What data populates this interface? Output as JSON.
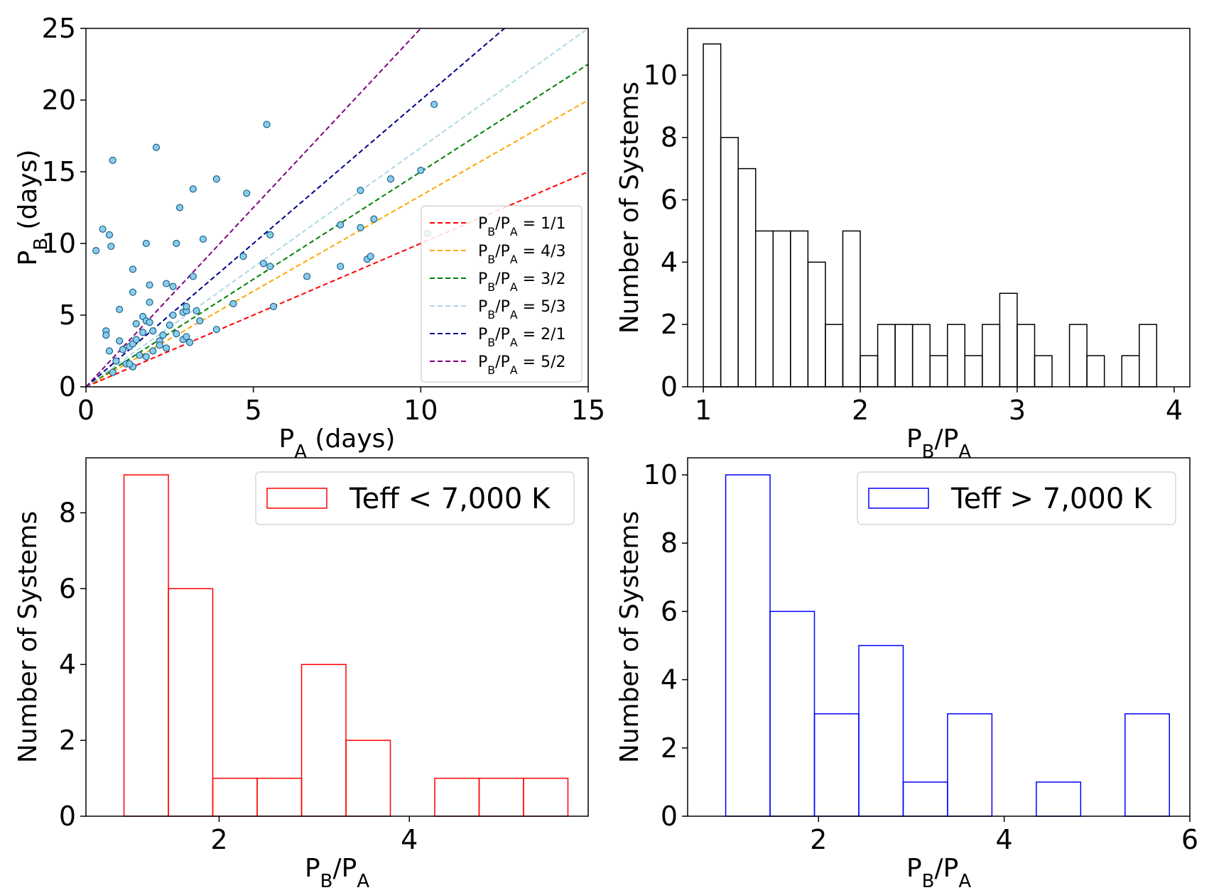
{
  "chart_data": [
    {
      "type": "scatter",
      "xlabel": "P_A (days)",
      "ylabel": "P_B (days)",
      "xlim": [
        0,
        15
      ],
      "ylim": [
        0,
        25
      ],
      "xticks": [
        0,
        5,
        10,
        15
      ],
      "yticks": [
        0,
        5,
        10,
        15,
        20,
        25
      ],
      "legend_position": "lower-right",
      "point_color": "#87ceeb",
      "point_edge_color": "#1f5f8b",
      "reference_lines": [
        {
          "label": "P_B/P_A = 1/1",
          "slope": 1.0,
          "color": "#ff0000"
        },
        {
          "label": "P_B/P_A = 4/3",
          "slope": 1.3333,
          "color": "#ffa500"
        },
        {
          "label": "P_B/P_A = 3/2",
          "slope": 1.5,
          "color": "#008000"
        },
        {
          "label": "P_B/P_A = 5/3",
          "slope": 1.6667,
          "color": "#add8e6"
        },
        {
          "label": "P_B/P_A = 2/1",
          "slope": 2.0,
          "color": "#00008b"
        },
        {
          "label": "P_B/P_A = 5/2",
          "slope": 2.5,
          "color": "#800080"
        }
      ],
      "points": [
        [
          0.3,
          9.5
        ],
        [
          0.5,
          11.0
        ],
        [
          0.6,
          3.9
        ],
        [
          0.6,
          3.6
        ],
        [
          0.7,
          10.6
        ],
        [
          0.75,
          9.8
        ],
        [
          0.8,
          15.8
        ],
        [
          0.7,
          2.5
        ],
        [
          0.8,
          1.0
        ],
        [
          1.0,
          5.4
        ],
        [
          1.0,
          3.2
        ],
        [
          0.9,
          1.8
        ],
        [
          1.1,
          2.6
        ],
        [
          1.2,
          1.6
        ],
        [
          1.3,
          2.8
        ],
        [
          1.4,
          8.2
        ],
        [
          1.4,
          6.6
        ],
        [
          1.4,
          3.0
        ],
        [
          1.5,
          4.4
        ],
        [
          1.5,
          3.3
        ],
        [
          1.4,
          1.4
        ],
        [
          1.6,
          2.2
        ],
        [
          1.7,
          4.9
        ],
        [
          1.7,
          3.8
        ],
        [
          1.8,
          10.0
        ],
        [
          1.8,
          4.6
        ],
        [
          1.9,
          7.1
        ],
        [
          1.9,
          5.9
        ],
        [
          1.9,
          4.5
        ],
        [
          1.8,
          2.1
        ],
        [
          2.0,
          2.5
        ],
        [
          2.1,
          16.7
        ],
        [
          2.0,
          3.9
        ],
        [
          2.2,
          3.2
        ],
        [
          2.3,
          3.6
        ],
        [
          2.4,
          7.2
        ],
        [
          2.5,
          4.3
        ],
        [
          2.4,
          2.7
        ],
        [
          2.6,
          5.0
        ],
        [
          2.6,
          7.0
        ],
        [
          2.7,
          10.0
        ],
        [
          2.7,
          3.7
        ],
        [
          2.8,
          12.5
        ],
        [
          2.9,
          5.2
        ],
        [
          2.9,
          3.3
        ],
        [
          3.0,
          5.3
        ],
        [
          3.0,
          3.5
        ],
        [
          3.1,
          3.1
        ],
        [
          3.0,
          5.6
        ],
        [
          3.2,
          13.8
        ],
        [
          3.2,
          7.7
        ],
        [
          3.3,
          5.3
        ],
        [
          3.4,
          4.6
        ],
        [
          3.5,
          10.3
        ],
        [
          3.9,
          14.5
        ],
        [
          3.9,
          4.0
        ],
        [
          4.4,
          5.8
        ],
        [
          4.7,
          9.1
        ],
        [
          4.8,
          13.5
        ],
        [
          5.3,
          8.6
        ],
        [
          5.4,
          18.3
        ],
        [
          5.5,
          10.6
        ],
        [
          5.5,
          8.4
        ],
        [
          5.6,
          5.6
        ],
        [
          6.6,
          7.7
        ],
        [
          7.6,
          11.3
        ],
        [
          7.6,
          8.4
        ],
        [
          8.2,
          13.7
        ],
        [
          8.2,
          11.1
        ],
        [
          8.4,
          8.9
        ],
        [
          8.5,
          9.1
        ],
        [
          8.6,
          11.7
        ],
        [
          9.1,
          14.5
        ],
        [
          10.0,
          15.1
        ],
        [
          10.4,
          19.7
        ],
        [
          10.2,
          10.7
        ],
        [
          1.3,
          1.6
        ],
        [
          2.2,
          2.9
        ]
      ]
    },
    {
      "type": "histogram",
      "xlabel": "P_B/P_A",
      "ylabel": "Number of Systems",
      "xlim": [
        0.9,
        4.1
      ],
      "ylim": [
        0,
        11.5
      ],
      "xticks": [
        1,
        2,
        3,
        4
      ],
      "yticks": [
        0,
        2,
        4,
        6,
        8,
        10
      ],
      "bar_color": "#000000",
      "bin_start": 1.0,
      "bin_width": 0.1111,
      "values": [
        11,
        8,
        7,
        5,
        5,
        5,
        4,
        2,
        5,
        1,
        2,
        2,
        2,
        1,
        2,
        1,
        2,
        3,
        2,
        1,
        0,
        2,
        1,
        0,
        1,
        2
      ]
    },
    {
      "type": "histogram",
      "xlabel": "P_B/P_A",
      "ylabel": "Number of Systems",
      "xlim": [
        0.6,
        5.88
      ],
      "ylim": [
        0,
        9.45
      ],
      "xticks": [
        2,
        4
      ],
      "yticks": [
        0,
        2,
        4,
        6,
        8
      ],
      "bar_color": "#ff0000",
      "legend": "Teff < 7,000 K",
      "legend_position": "top-right",
      "bin_start": 1.0,
      "bin_width": 0.4667,
      "values": [
        9,
        6,
        1,
        1,
        4,
        2,
        0,
        1,
        1,
        1
      ]
    },
    {
      "type": "histogram",
      "xlabel": "P_B/P_A",
      "ylabel": "Number of Systems",
      "xlim": [
        0.59,
        6.0
      ],
      "ylim": [
        0,
        10.5
      ],
      "xticks": [
        2,
        4,
        6
      ],
      "yticks": [
        0,
        2,
        4,
        6,
        8,
        10
      ],
      "bar_color": "#0000ff",
      "legend": "Teff > 7,000 K",
      "legend_position": "top-right",
      "bin_start": 1.0,
      "bin_width": 0.478,
      "values": [
        10,
        6,
        3,
        5,
        1,
        3,
        0,
        1,
        0,
        3
      ]
    }
  ]
}
